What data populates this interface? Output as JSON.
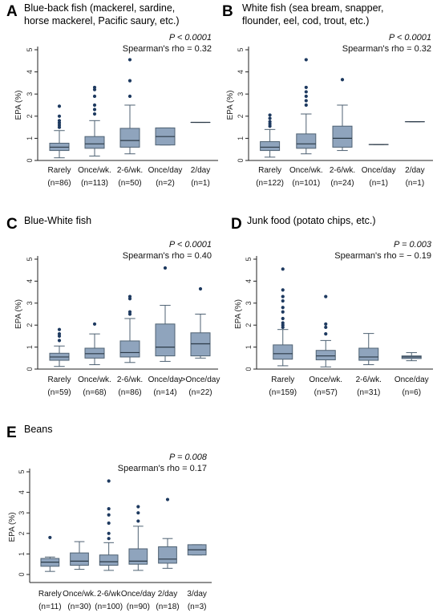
{
  "panels": [
    {
      "letter": "A",
      "title_lines": [
        "Blue-back fish (mackerel, sardine,",
        "horse mackerel, Pacific saury, etc.)"
      ],
      "pvalue": "P < 0.0001",
      "rho": "Spearman's rho = 0.32"
    },
    {
      "letter": "B",
      "title_lines": [
        "White fish (sea bream, snapper,",
        "flounder, eel, cod, trout, etc.)"
      ],
      "pvalue": "P < 0.0001",
      "rho": "Spearman's rho = 0.32"
    },
    {
      "letter": "C",
      "title_lines": [
        "Blue-White fish"
      ],
      "pvalue": "P < 0.0001",
      "rho": "Spearman's rho = 0.40"
    },
    {
      "letter": "D",
      "title_lines": [
        "Junk food (potato chips, etc.)"
      ],
      "pvalue": "P = 0.003",
      "rho": "Spearman's rho = − 0.19"
    },
    {
      "letter": "E",
      "title_lines": [
        "Beans"
      ],
      "pvalue": "P = 0.008",
      "rho": "Spearman's rho = 0.17"
    }
  ],
  "chart_data": [
    {
      "type": "box",
      "ylabel": "EPA (%)",
      "ylim": [
        0,
        5
      ],
      "yticks": [
        0,
        1,
        2,
        3,
        4,
        5
      ],
      "categories": [
        "Rarely",
        "Once/wk.",
        "2-6/wk.",
        "Once/day",
        "2/day"
      ],
      "counts": [
        "(n=86)",
        "(n=113)",
        "(n=50)",
        "(n=2)",
        "(n=1)"
      ],
      "boxes": [
        {
          "lw": 0.12,
          "q1": 0.45,
          "med": 0.6,
          "q3": 0.78,
          "uw": 1.35,
          "out": [
            1.5,
            1.6,
            1.7,
            1.8,
            2.0,
            2.45
          ]
        },
        {
          "lw": 0.2,
          "q1": 0.55,
          "med": 0.75,
          "q3": 1.08,
          "uw": 1.8,
          "out": [
            2.1,
            2.3,
            2.5,
            2.9,
            3.2,
            3.3
          ]
        },
        {
          "lw": 0.3,
          "q1": 0.6,
          "med": 0.9,
          "q3": 1.45,
          "uw": 2.5,
          "out": [
            2.9,
            3.6,
            4.55
          ]
        },
        {
          "lw": 0.7,
          "q1": 0.7,
          "med": 1.08,
          "q3": 1.47,
          "uw": 1.47,
          "out": []
        },
        {
          "lw": 1.72,
          "q1": 1.72,
          "med": 1.72,
          "q3": 1.72,
          "uw": 1.72,
          "out": []
        }
      ]
    },
    {
      "type": "box",
      "ylabel": "EPA (%)",
      "ylim": [
        0,
        5
      ],
      "yticks": [
        0,
        1,
        2,
        3,
        4,
        5
      ],
      "categories": [
        "Rarely",
        "Once/wk.",
        "2-6/wk.",
        "Once/day",
        "2/day"
      ],
      "counts": [
        "(n=122)",
        "(n=101)",
        "(n=24)",
        "(n=1)",
        "(n=1)"
      ],
      "boxes": [
        {
          "lw": 0.15,
          "q1": 0.45,
          "med": 0.6,
          "q3": 0.85,
          "uw": 1.4,
          "out": [
            1.55,
            1.65,
            1.75,
            1.9,
            2.05
          ]
        },
        {
          "lw": 0.3,
          "q1": 0.55,
          "med": 0.75,
          "q3": 1.2,
          "uw": 2.1,
          "out": [
            2.5,
            2.7,
            2.9,
            3.1,
            3.3,
            4.55
          ]
        },
        {
          "lw": 0.45,
          "q1": 0.6,
          "med": 1.0,
          "q3": 1.55,
          "uw": 2.5,
          "out": [
            3.65
          ]
        },
        {
          "lw": 0.72,
          "q1": 0.72,
          "med": 0.72,
          "q3": 0.72,
          "uw": 0.72,
          "out": []
        },
        {
          "lw": 1.75,
          "q1": 1.75,
          "med": 1.75,
          "q3": 1.75,
          "uw": 1.75,
          "out": []
        }
      ]
    },
    {
      "type": "box",
      "ylabel": "EPA (%)",
      "ylim": [
        0,
        5
      ],
      "yticks": [
        0,
        1,
        2,
        3,
        4,
        5
      ],
      "categories": [
        "Rarely",
        "Once/wk.",
        "2-6/wk.",
        "Once/day",
        ">Once/day"
      ],
      "counts": [
        "(n=59)",
        "(n=68)",
        "(n=86)",
        "(n=14)",
        "(n=22)"
      ],
      "boxes": [
        {
          "lw": 0.12,
          "q1": 0.4,
          "med": 0.55,
          "q3": 0.72,
          "uw": 1.05,
          "out": [
            1.3,
            1.5,
            1.6,
            1.8
          ]
        },
        {
          "lw": 0.2,
          "q1": 0.5,
          "med": 0.7,
          "q3": 0.95,
          "uw": 1.6,
          "out": [
            2.05
          ]
        },
        {
          "lw": 0.3,
          "q1": 0.55,
          "med": 0.75,
          "q3": 1.28,
          "uw": 2.3,
          "out": [
            2.5,
            2.6,
            3.2,
            3.3
          ]
        },
        {
          "lw": 0.35,
          "q1": 0.6,
          "med": 1.0,
          "q3": 2.05,
          "uw": 2.9,
          "out": [
            4.6
          ]
        },
        {
          "lw": 0.5,
          "q1": 0.6,
          "med": 1.15,
          "q3": 1.65,
          "uw": 2.5,
          "out": [
            3.65
          ]
        }
      ]
    },
    {
      "type": "box",
      "ylabel": "EPA (%)",
      "ylim": [
        0,
        5
      ],
      "yticks": [
        0,
        1,
        2,
        3,
        4,
        5
      ],
      "categories": [
        "Rarely",
        "Once/wk.",
        "2-6/wk.",
        "Once/day"
      ],
      "counts": [
        "(n=159)",
        "(n=57)",
        "(n=31)",
        "(n=6)"
      ],
      "boxes": [
        {
          "lw": 0.15,
          "q1": 0.45,
          "med": 0.7,
          "q3": 1.1,
          "uw": 1.8,
          "out": [
            1.9,
            2.0,
            2.1,
            2.3,
            2.6,
            2.8,
            3.1,
            3.3,
            3.6,
            4.55
          ]
        },
        {
          "lw": 0.1,
          "q1": 0.42,
          "med": 0.6,
          "q3": 0.85,
          "uw": 1.3,
          "out": [
            1.6,
            1.9,
            2.05,
            3.3
          ]
        },
        {
          "lw": 0.2,
          "q1": 0.4,
          "med": 0.55,
          "q3": 0.95,
          "uw": 1.62,
          "out": []
        },
        {
          "lw": 0.38,
          "q1": 0.48,
          "med": 0.55,
          "q3": 0.6,
          "uw": 0.75,
          "out": []
        }
      ]
    },
    {
      "type": "box",
      "ylabel": "EPA (%)",
      "ylim": [
        0,
        5
      ],
      "yticks": [
        0,
        1,
        2,
        3,
        4,
        5
      ],
      "categories": [
        "Rarely",
        "Once/wk.",
        "2-6/wk",
        "Once/day",
        "2/day",
        "3/day"
      ],
      "counts": [
        "(n=11)",
        "(n=30)",
        "(n=100)",
        "(n=90)",
        "(n=18)",
        "(n=3)"
      ],
      "boxes": [
        {
          "lw": 0.15,
          "q1": 0.4,
          "med": 0.6,
          "q3": 0.78,
          "uw": 0.85,
          "out": [
            1.8
          ]
        },
        {
          "lw": 0.25,
          "q1": 0.45,
          "med": 0.65,
          "q3": 1.05,
          "uw": 1.6,
          "out": []
        },
        {
          "lw": 0.2,
          "q1": 0.45,
          "med": 0.62,
          "q3": 0.95,
          "uw": 1.55,
          "out": [
            1.75,
            2.0,
            2.5,
            2.9,
            3.2,
            4.55
          ]
        },
        {
          "lw": 0.2,
          "q1": 0.5,
          "med": 0.65,
          "q3": 1.25,
          "uw": 2.35,
          "out": [
            2.6,
            3.0,
            3.3
          ]
        },
        {
          "lw": 0.3,
          "q1": 0.55,
          "med": 0.75,
          "q3": 1.35,
          "uw": 1.75,
          "out": [
            3.65
          ]
        },
        {
          "lw": 0.95,
          "q1": 0.95,
          "med": 1.2,
          "q3": 1.45,
          "uw": 1.45,
          "out": []
        }
      ]
    }
  ],
  "colors": {
    "box_fill": "#8fa4bd",
    "box_stroke": "#4f6273",
    "median": "#2c3a47",
    "outlier": "#1e3a60",
    "axis": "#222222"
  }
}
